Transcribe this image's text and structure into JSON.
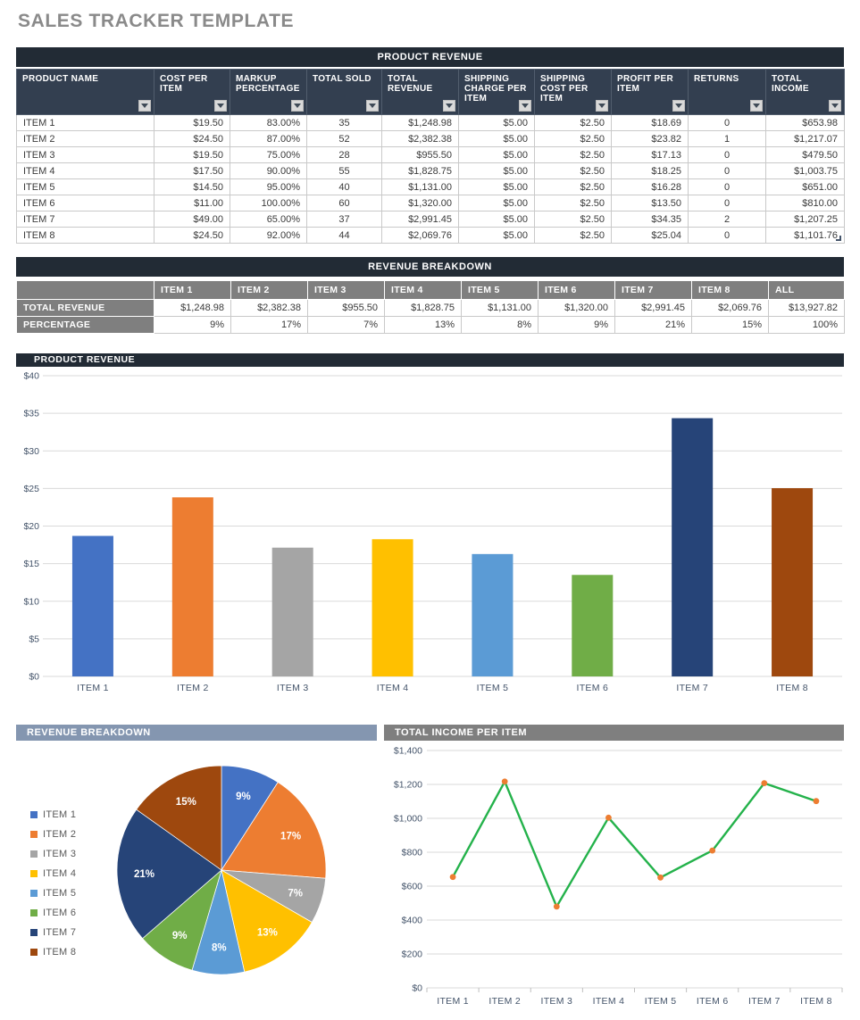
{
  "page": {
    "title": "SALES TRACKER TEMPLATE"
  },
  "colors": {
    "header_dark": "#222B35",
    "header_slate": "#333F50",
    "header_gray": "#7f7f7f",
    "header_bluegray": "#8496B0",
    "grid": "#D9D9D9",
    "axis_label": "#44546A",
    "series_palette": [
      "#4472C4",
      "#ED7D31",
      "#A5A5A5",
      "#FFC000",
      "#5B9BD5",
      "#70AD47",
      "#264478",
      "#9E480E"
    ],
    "line_green": "#24B24B",
    "marker_orange": "#ED7D31"
  },
  "product_table": {
    "title": "PRODUCT REVENUE",
    "columns": [
      "PRODUCT NAME",
      "COST PER ITEM",
      "MARKUP PERCENTAGE",
      "TOTAL SOLD",
      "TOTAL REVENUE",
      "SHIPPING CHARGE PER ITEM",
      "SHIPPING COST PER ITEM",
      "PROFIT PER ITEM",
      "RETURNS",
      "TOTAL INCOME"
    ],
    "rows": [
      [
        "ITEM 1",
        "$19.50",
        "83.00%",
        "35",
        "$1,248.98",
        "$5.00",
        "$2.50",
        "$18.69",
        "0",
        "$653.98"
      ],
      [
        "ITEM 2",
        "$24.50",
        "87.00%",
        "52",
        "$2,382.38",
        "$5.00",
        "$2.50",
        "$23.82",
        "1",
        "$1,217.07"
      ],
      [
        "ITEM 3",
        "$19.50",
        "75.00%",
        "28",
        "$955.50",
        "$5.00",
        "$2.50",
        "$17.13",
        "0",
        "$479.50"
      ],
      [
        "ITEM 4",
        "$17.50",
        "90.00%",
        "55",
        "$1,828.75",
        "$5.00",
        "$2.50",
        "$18.25",
        "0",
        "$1,003.75"
      ],
      [
        "ITEM 5",
        "$14.50",
        "95.00%",
        "40",
        "$1,131.00",
        "$5.00",
        "$2.50",
        "$16.28",
        "0",
        "$651.00"
      ],
      [
        "ITEM 6",
        "$11.00",
        "100.00%",
        "60",
        "$1,320.00",
        "$5.00",
        "$2.50",
        "$13.50",
        "0",
        "$810.00"
      ],
      [
        "ITEM 7",
        "$49.00",
        "65.00%",
        "37",
        "$2,991.45",
        "$5.00",
        "$2.50",
        "$34.35",
        "2",
        "$1,207.25"
      ],
      [
        "ITEM 8",
        "$24.50",
        "92.00%",
        "44",
        "$2,069.76",
        "$5.00",
        "$2.50",
        "$25.04",
        "0",
        "$1,101.76"
      ]
    ]
  },
  "breakdown_table": {
    "title": "REVENUE BREAKDOWN",
    "col_headers": [
      "",
      "ITEM 1",
      "ITEM 2",
      "ITEM 3",
      "ITEM 4",
      "ITEM 5",
      "ITEM 6",
      "ITEM 7",
      "ITEM 8",
      "ALL"
    ],
    "rows": [
      {
        "label": "TOTAL REVENUE",
        "values": [
          "$1,248.98",
          "$2,382.38",
          "$955.50",
          "$1,828.75",
          "$1,131.00",
          "$1,320.00",
          "$2,991.45",
          "$2,069.76",
          "$13,927.82"
        ]
      },
      {
        "label": "PERCENTAGE",
        "values": [
          "9%",
          "17%",
          "7%",
          "13%",
          "8%",
          "9%",
          "21%",
          "15%",
          "100%"
        ]
      }
    ]
  },
  "chart_data": [
    {
      "type": "bar",
      "title": "PRODUCT REVENUE",
      "categories": [
        "ITEM 1",
        "ITEM 2",
        "ITEM 3",
        "ITEM 4",
        "ITEM 5",
        "ITEM 6",
        "ITEM 7",
        "ITEM 8"
      ],
      "values": [
        18.69,
        23.82,
        17.13,
        18.25,
        16.28,
        13.5,
        34.35,
        25.04
      ],
      "ylim": [
        0,
        40
      ],
      "ytick_step": 5,
      "ytick_labels": [
        "$0",
        "$5",
        "$10",
        "$15",
        "$20",
        "$25",
        "$30",
        "$35",
        "$40"
      ],
      "grid": true,
      "legend": "none",
      "bar_colors": [
        "#4472C4",
        "#ED7D31",
        "#A5A5A5",
        "#FFC000",
        "#5B9BD5",
        "#70AD47",
        "#264478",
        "#9E480E"
      ]
    },
    {
      "type": "pie",
      "title": "REVENUE BREAKDOWN",
      "labels": [
        "ITEM 1",
        "ITEM 2",
        "ITEM 3",
        "ITEM 4",
        "ITEM 5",
        "ITEM 6",
        "ITEM 7",
        "ITEM 8"
      ],
      "values": [
        9,
        17,
        7,
        13,
        8,
        9,
        21,
        15
      ],
      "slice_labels": [
        "9%",
        "17%",
        "7%",
        "13%",
        "8%",
        "9%",
        "21%",
        "15%"
      ],
      "colors": [
        "#4472C4",
        "#ED7D31",
        "#A5A5A5",
        "#FFC000",
        "#5B9BD5",
        "#70AD47",
        "#264478",
        "#9E480E"
      ],
      "legend_position": "left",
      "start_angle_deg": 0,
      "direction": "clockwise"
    },
    {
      "type": "line",
      "title": "TOTAL INCOME PER ITEM",
      "categories": [
        "ITEM 1",
        "ITEM 2",
        "ITEM 3",
        "ITEM 4",
        "ITEM 5",
        "ITEM 6",
        "ITEM 7",
        "ITEM 8"
      ],
      "values": [
        653.98,
        1217.07,
        479.5,
        1003.75,
        651.0,
        810.0,
        1207.25,
        1101.76
      ],
      "ylim": [
        0,
        1400
      ],
      "ytick_step": 200,
      "ytick_labels": [
        "$0",
        "$200",
        "$400",
        "$600",
        "$800",
        "$1,000",
        "$1,200",
        "$1,400"
      ],
      "grid": true,
      "legend": "none",
      "line_color": "#24B24B",
      "marker_color": "#ED7D31"
    }
  ]
}
